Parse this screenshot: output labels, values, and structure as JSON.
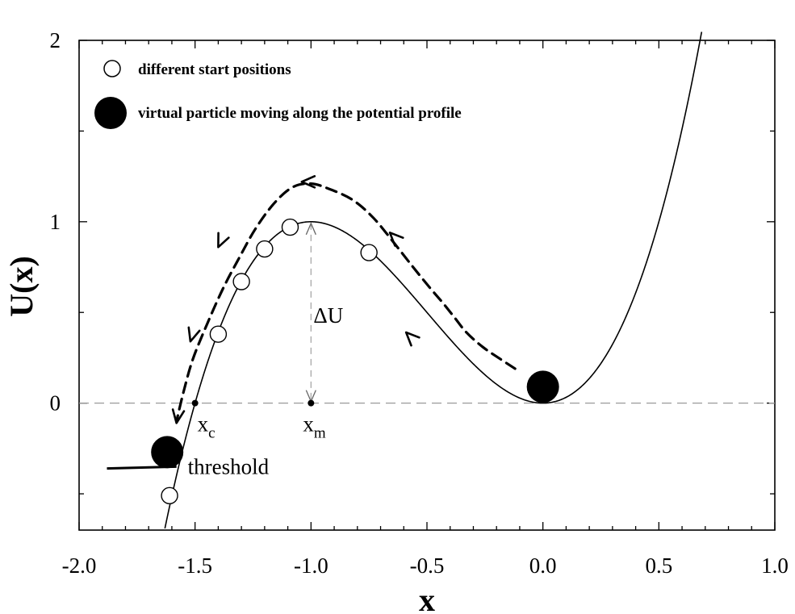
{
  "chart_data": {
    "type": "line",
    "title": "",
    "xlabel": "x",
    "ylabel": "U(x)",
    "xlim": [
      -2.0,
      1.0
    ],
    "ylim": [
      -0.7,
      2.0
    ],
    "xticks": [
      -2.0,
      -1.5,
      -1.0,
      -0.5,
      0.0,
      0.5,
      1.0
    ],
    "xtick_labels": [
      "-2.0",
      "-1.5",
      "-1.0",
      "-0.5",
      "0.0",
      "0.5",
      "1.0"
    ],
    "yticks": [
      0,
      1,
      2
    ],
    "ytick_labels": [
      "0",
      "1",
      "2"
    ],
    "grid": false,
    "potential": {
      "name": "U(x)",
      "formula": "U(x) = 2x^3 + 3x^2",
      "x_range": [
        -1.63,
        0.7
      ]
    },
    "reference_line": {
      "y": 0,
      "style": "dashed"
    },
    "path": {
      "style": "dashed-with-arrows",
      "points": [
        [
          -0.12,
          0.19
        ],
        [
          -0.18,
          0.24
        ],
        [
          -0.26,
          0.31
        ],
        [
          -0.33,
          0.39
        ],
        [
          -0.38,
          0.47
        ],
        [
          -0.43,
          0.55
        ],
        [
          -0.49,
          0.64
        ],
        [
          -0.56,
          0.75
        ],
        [
          -0.64,
          0.88
        ],
        [
          -0.73,
          1.02
        ],
        [
          -0.82,
          1.12
        ],
        [
          -0.92,
          1.18
        ],
        [
          -1.0,
          1.21
        ],
        [
          -1.08,
          1.19
        ],
        [
          -1.16,
          1.1
        ],
        [
          -1.24,
          0.96
        ],
        [
          -1.31,
          0.8
        ],
        [
          -1.38,
          0.63
        ],
        [
          -1.45,
          0.43
        ],
        [
          -1.51,
          0.24
        ],
        [
          -1.55,
          0.06
        ],
        [
          -1.58,
          -0.1
        ]
      ],
      "arrows": [
        {
          "at": [
            -0.59,
            0.39
          ],
          "direction": [
            -1,
            1
          ]
        },
        {
          "at": [
            -0.66,
            0.94
          ],
          "direction": [
            -1,
            1
          ]
        },
        {
          "at": [
            -1.04,
            1.22
          ],
          "direction": [
            -1,
            0
          ]
        },
        {
          "at": [
            -1.4,
            0.86
          ],
          "direction": [
            -0.45,
            -1
          ]
        },
        {
          "at": [
            -1.52,
            0.34
          ],
          "direction": [
            -0.3,
            -1
          ]
        },
        {
          "at": [
            -1.58,
            -0.11
          ],
          "direction": [
            -0.15,
            -1
          ]
        }
      ]
    },
    "start_positions": [
      {
        "x": -1.09,
        "y": 0.97
      },
      {
        "x": -1.2,
        "y": 0.85
      },
      {
        "x": -1.3,
        "y": 0.67
      },
      {
        "x": -1.4,
        "y": 0.38
      },
      {
        "x": -0.75,
        "y": 0.83
      },
      {
        "x": -1.61,
        "y": -0.51
      }
    ],
    "particles": [
      {
        "x": 0.0,
        "y": 0.09
      },
      {
        "x": -1.62,
        "y": -0.27
      }
    ],
    "points": [
      {
        "name": "xc",
        "x": -1.5,
        "y": 0
      },
      {
        "name": "xm",
        "x": -1.0,
        "y": 0
      }
    ],
    "delta_u": {
      "x": -1.0,
      "from": 0,
      "to": 1.0,
      "label": "ΔU"
    },
    "threshold": {
      "x_from": -1.88,
      "x_to": -1.58,
      "y_from": -0.36,
      "y_to": -0.35,
      "label": "threshold"
    },
    "annotations": {
      "xc": {
        "main": "x",
        "sub": "c"
      },
      "xm": {
        "main": "x",
        "sub": "m"
      }
    },
    "legend": {
      "placement": "top-left",
      "entries": [
        {
          "marker": "open-circle",
          "label": "different start positions"
        },
        {
          "marker": "filled-circle",
          "label": "virtual particle moving along the potential profile"
        }
      ]
    }
  }
}
